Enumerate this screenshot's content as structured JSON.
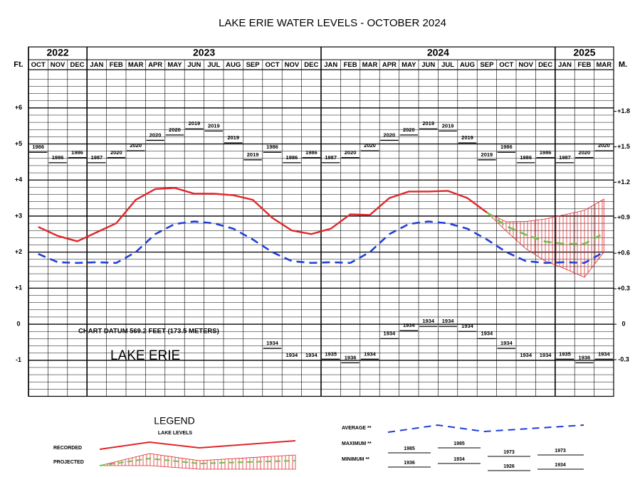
{
  "chart_data": {
    "type": "line",
    "title": "LAKE ERIE WATER LEVELS - OCTOBER 2024",
    "y_axis_label": "Ft.",
    "y2_axis_label": "M.",
    "year_groups": [
      {
        "label": "2022",
        "months": [
          "OCT",
          "NOV",
          "DEC"
        ]
      },
      {
        "label": "2023",
        "months": [
          "JAN",
          "FEB",
          "MAR",
          "APR",
          "MAY",
          "JUN",
          "JUL",
          "AUG",
          "SEP",
          "OCT",
          "NOV",
          "DEC"
        ]
      },
      {
        "label": "2024",
        "months": [
          "JAN",
          "FEB",
          "MAR",
          "APR",
          "MAY",
          "JUN",
          "JUL",
          "AUG",
          "SEP",
          "OCT",
          "NOV",
          "DEC"
        ]
      },
      {
        "label": "2025",
        "months": [
          "JAN",
          "FEB",
          "MAR"
        ]
      }
    ],
    "ylim": [
      -2,
      7
    ],
    "yticks": [
      {
        "value": 6,
        "label": "+6"
      },
      {
        "value": 5,
        "label": "+5"
      },
      {
        "value": 4,
        "label": "+4"
      },
      {
        "value": 3,
        "label": "+3"
      },
      {
        "value": 2,
        "label": "+2"
      },
      {
        "value": 1,
        "label": "+1"
      },
      0,
      -1
    ],
    "minor_yticks": [
      -1.8,
      -1.6,
      -1.4,
      -1.2,
      -0.8,
      -0.6,
      -0.4,
      -0.2,
      0.2,
      0.4,
      0.6,
      0.8,
      1.2,
      1.4,
      1.6,
      1.8,
      2.2,
      2.4,
      2.6,
      2.8,
      3.2,
      3.4,
      3.6,
      3.8,
      4.2,
      4.4,
      4.6,
      4.8,
      5.2,
      5.4,
      5.6,
      5.8,
      6.2,
      6.4,
      6.6,
      6.8
    ],
    "y2lim": [
      -0.6096,
      2.1336
    ],
    "y2ticks": [
      {
        "value": 1.8,
        "label": "+1.8"
      },
      {
        "value": 1.5,
        "label": "+1.5"
      },
      {
        "value": 1.2,
        "label": "+1.2"
      },
      {
        "value": 0.9,
        "label": "+0.9"
      },
      {
        "value": 0.6,
        "label": "+0.6"
      },
      {
        "value": 0.3,
        "label": "+0.3"
      },
      0,
      -0.3
    ],
    "grid": true,
    "series": [
      {
        "name": "RECORDED",
        "color": "#e0262a",
        "style": "solid",
        "values": [
          2.7,
          2.45,
          2.3,
          2.55,
          2.8,
          3.45,
          3.75,
          3.78,
          3.62,
          3.62,
          3.58,
          3.45,
          2.95,
          2.6,
          2.5,
          2.65,
          3.05,
          3.03,
          3.5,
          3.68,
          3.68,
          3.7,
          3.5,
          3.1,
          null,
          null,
          null,
          null,
          null,
          null
        ]
      },
      {
        "name": "PROJECTED",
        "color": "#6cc24a",
        "style": "dashed",
        "values": [
          null,
          null,
          null,
          null,
          null,
          null,
          null,
          null,
          null,
          null,
          null,
          null,
          null,
          null,
          null,
          null,
          null,
          null,
          null,
          null,
          null,
          null,
          null,
          3.1,
          2.72,
          2.48,
          2.29,
          2.23,
          2.23,
          2.52
        ]
      },
      {
        "name": "AVERAGE **",
        "color": "#1f3fd8",
        "style": "dashed",
        "values": [
          1.95,
          1.72,
          1.7,
          1.72,
          1.7,
          2.0,
          2.5,
          2.78,
          2.85,
          2.8,
          2.65,
          2.35,
          2.0,
          1.75,
          1.7,
          1.72,
          1.7,
          2.0,
          2.5,
          2.78,
          2.85,
          2.8,
          2.65,
          2.35,
          2.0,
          1.75,
          1.7,
          1.72,
          1.7,
          2.0
        ]
      }
    ],
    "projection_range": {
      "color": "#e0262a",
      "upper": [
        null,
        null,
        null,
        null,
        null,
        null,
        null,
        null,
        null,
        null,
        null,
        null,
        null,
        null,
        null,
        null,
        null,
        null,
        null,
        null,
        null,
        null,
        null,
        3.1,
        2.84,
        2.85,
        2.92,
        3.04,
        3.16,
        3.47
      ],
      "lower": [
        null,
        null,
        null,
        null,
        null,
        null,
        null,
        null,
        null,
        null,
        null,
        null,
        null,
        null,
        null,
        null,
        null,
        null,
        null,
        null,
        null,
        null,
        null,
        3.1,
        2.58,
        2.09,
        1.75,
        1.54,
        1.3,
        2.0
      ]
    },
    "max_records": {
      "name": "MAXIMUM **",
      "values": [
        4.77,
        4.48,
        4.62,
        4.48,
        4.62,
        4.81,
        5.1,
        5.25,
        5.42,
        5.36,
        5.03,
        4.56,
        4.77,
        4.48,
        4.62,
        4.48,
        4.62,
        4.81,
        5.1,
        5.25,
        5.42,
        5.36,
        5.03,
        4.56,
        4.77,
        4.48,
        4.62,
        4.48,
        4.62,
        4.81
      ],
      "labels": [
        "1986",
        "1986",
        "1986",
        "1987",
        "2020",
        "2020",
        "2020",
        "2020",
        "2019",
        "2019",
        "2019",
        "2019",
        "1986",
        "1986",
        "1986",
        "1987",
        "2020",
        "2020",
        "2020",
        "2020",
        "2019",
        "2019",
        "2019",
        "2019",
        "1986",
        "1986",
        "1986",
        "1987",
        "2020",
        "2020"
      ]
    },
    "min_records": {
      "name": "MINIMUM **",
      "values": [
        null,
        null,
        null,
        null,
        null,
        null,
        null,
        null,
        null,
        null,
        null,
        null,
        -0.67,
        -1.0,
        -1.0,
        -0.97,
        -1.07,
        -0.97,
        -0.4,
        -0.18,
        -0.06,
        -0.06,
        -0.2,
        -0.4,
        -0.67,
        -1.0,
        -1.0,
        -0.97,
        -1.07,
        -0.97
      ],
      "labels": [
        null,
        null,
        null,
        null,
        null,
        null,
        null,
        null,
        null,
        null,
        null,
        null,
        "1934",
        "1934",
        "1934",
        "1935",
        "1936",
        "1934",
        "1934",
        "1934",
        "1934",
        "1934",
        "1934",
        "1934",
        "1934",
        "1934",
        "1934",
        "1935",
        "1936",
        "1934"
      ]
    },
    "annotations": [
      "CHART DATUM  569.2 FEET (173.5 METERS)",
      "LAKE ERIE"
    ],
    "legend": {
      "title": "LEGEND",
      "subtitle": "LAKE LEVELS",
      "max_years": [
        "1985",
        "1985",
        "1973",
        "1973"
      ],
      "min_years": [
        "1936",
        "1934",
        "1926",
        "1934"
      ]
    }
  }
}
